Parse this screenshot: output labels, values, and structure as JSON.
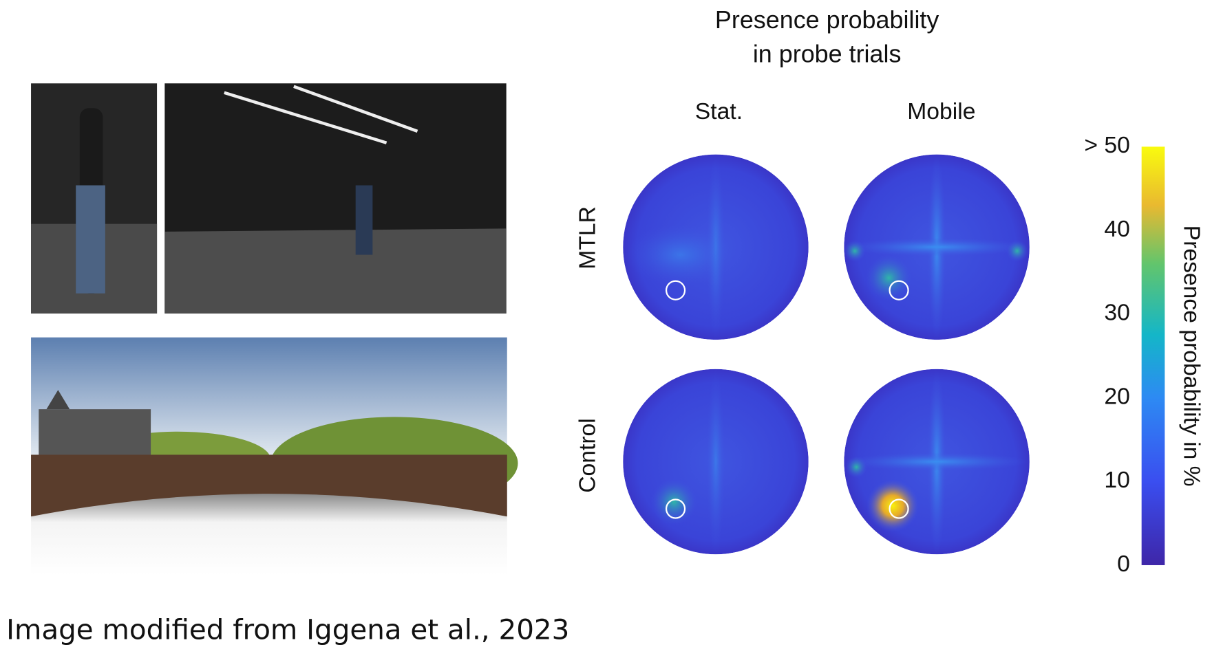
{
  "figure": {
    "title": [
      "Presence probability",
      "in probe trials"
    ],
    "columns": [
      "Stat.",
      "Mobile"
    ],
    "rows": [
      "MTLR",
      "Control"
    ],
    "colorbar": {
      "label": "Presence probability in %",
      "ticks": [
        0,
        10,
        20,
        30,
        40,
        {
          "value": 50,
          "label": "> 50"
        }
      ]
    },
    "caption": "Image modified from Iggena et al., 2023"
  }
}
